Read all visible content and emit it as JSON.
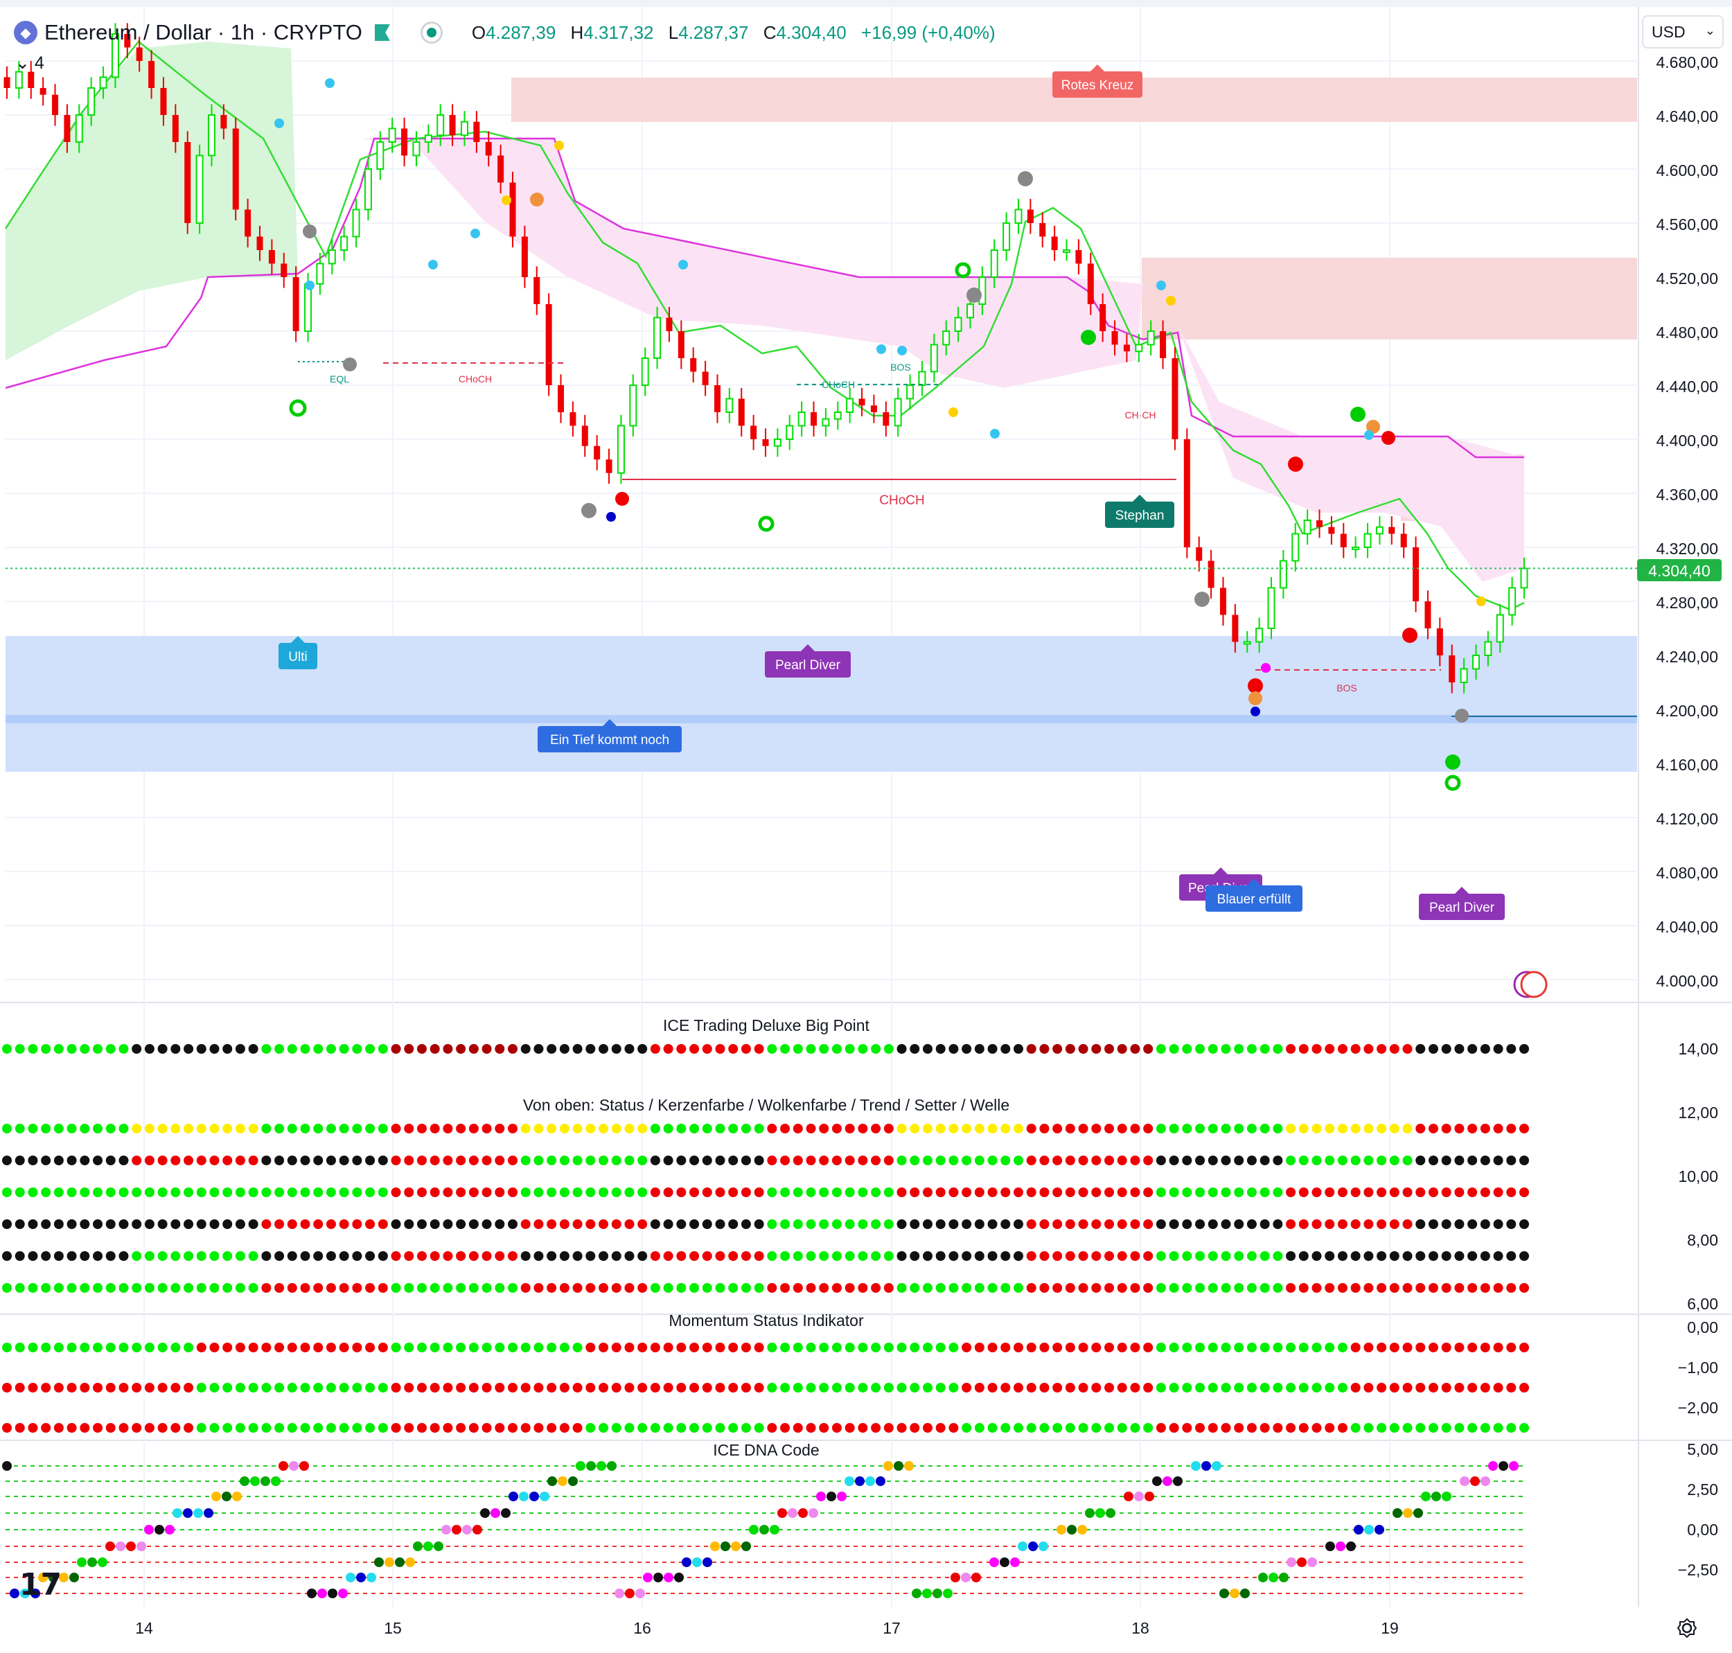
{
  "header": {
    "symbol": "Ethereum / Dollar · 1h · CRYPTO",
    "indicator_count": "4",
    "ohlc": {
      "o_label": "O",
      "o_value": "4.287,39",
      "h_label": "H",
      "h_value": "4.317,32",
      "l_label": "L",
      "l_value": "4.287,37",
      "c_label": "C",
      "c_value": "4.304,40",
      "change": "+16,99 (+0,40%)"
    }
  },
  "currency": "USD",
  "colors": {
    "bull": "#00e000",
    "bear": "#ee0000",
    "accent": "#089981",
    "cloud_bull": "#d7f5d9",
    "cloud_bear": "#fbe3f5",
    "zone_red": "#f8d7d9",
    "zone_blue": "#d1e0fb",
    "wave_green": "#33dd33",
    "wave_magenta": "#dd33dd"
  },
  "chart_data": [
    {
      "type": "candlestick",
      "title": "Ethereum / Dollar · 1h · CRYPTO",
      "x_ticks": [
        "14",
        "15",
        "16",
        "17",
        "18",
        "19"
      ],
      "y_ticks": [
        "4.680,00",
        "4.640,00",
        "4.600,00",
        "4.560,00",
        "4.520,00",
        "4.480,00",
        "4.440,00",
        "4.400,00",
        "4.360,00",
        "4.320,00",
        "4.280,00",
        "4.240,00",
        "4.200,00",
        "4.160,00",
        "4.120,00",
        "4.080,00",
        "4.040,00",
        "4.000,00"
      ],
      "ylim": [
        3990,
        4700
      ],
      "last_price": "4.304,40",
      "last_price_value": 4304.4,
      "candle_closes": [
        4660,
        4672,
        4660,
        4655,
        4640,
        4620,
        4640,
        4660,
        4668,
        4700,
        4690,
        4680,
        4660,
        4640,
        4620,
        4560,
        4610,
        4640,
        4630,
        4570,
        4550,
        4540,
        4530,
        4520,
        4480,
        4515,
        4530,
        4540,
        4550,
        4570,
        4600,
        4620,
        4630,
        4610,
        4620,
        4625,
        4640,
        4625,
        4635,
        4620,
        4610,
        4590,
        4550,
        4520,
        4500,
        4440,
        4420,
        4410,
        4395,
        4385,
        4375,
        4410,
        4440,
        4460,
        4490,
        4480,
        4460,
        4450,
        4440,
        4420,
        4430,
        4410,
        4400,
        4395,
        4400,
        4410,
        4420,
        4410,
        4415,
        4420,
        4430,
        4425,
        4420,
        4410,
        4430,
        4440,
        4450,
        4470,
        4480,
        4490,
        4500,
        4520,
        4540,
        4560,
        4570,
        4560,
        4550,
        4540,
        4540,
        4530,
        4500,
        4480,
        4470,
        4465,
        4470,
        4480,
        4460,
        4400,
        4320,
        4310,
        4290,
        4270,
        4250,
        4250,
        4260,
        4290,
        4310,
        4330,
        4340,
        4335,
        4330,
        4320,
        4320,
        4330,
        4335,
        4330,
        4320,
        4280,
        4260,
        4240,
        4220,
        4230,
        4240,
        4250,
        4270,
        4290,
        4304.4
      ],
      "annotations": [
        "Rotes Kreuz",
        "Ulti",
        "Pearl Diver",
        "Ein Tief kommt noch",
        "Stephan",
        "Pearl Diver",
        "Blauer erfüllt",
        "Pearl Diver",
        "CHoCH",
        "CHoCH",
        "CHoCH",
        "BOS",
        "BOS",
        "EQL",
        "CH·CH"
      ]
    },
    {
      "type": "dot-matrix",
      "title": "ICE Trading Deluxe Big Point",
      "y_ticks": [
        "14,00"
      ],
      "rows": 1
    },
    {
      "type": "dot-matrix",
      "title": "Von oben: Status / Kerzenfarbe / Wolkenfarbe / Trend / Setter / Welle",
      "y_ticks": [
        "12,00",
        "10,00",
        "8,00",
        "6,00"
      ],
      "rows": 6
    },
    {
      "type": "dot-matrix",
      "title": "Momentum Status Indikator",
      "y_ticks": [
        "0,00",
        "−1,00",
        "−2,00"
      ],
      "rows": 3
    },
    {
      "type": "scatter",
      "title": "ICE DNA Code",
      "y_ticks": [
        "5,00",
        "2,50",
        "0,00",
        "−2,50"
      ],
      "ylim": [
        -4.5,
        5.5
      ]
    }
  ]
}
